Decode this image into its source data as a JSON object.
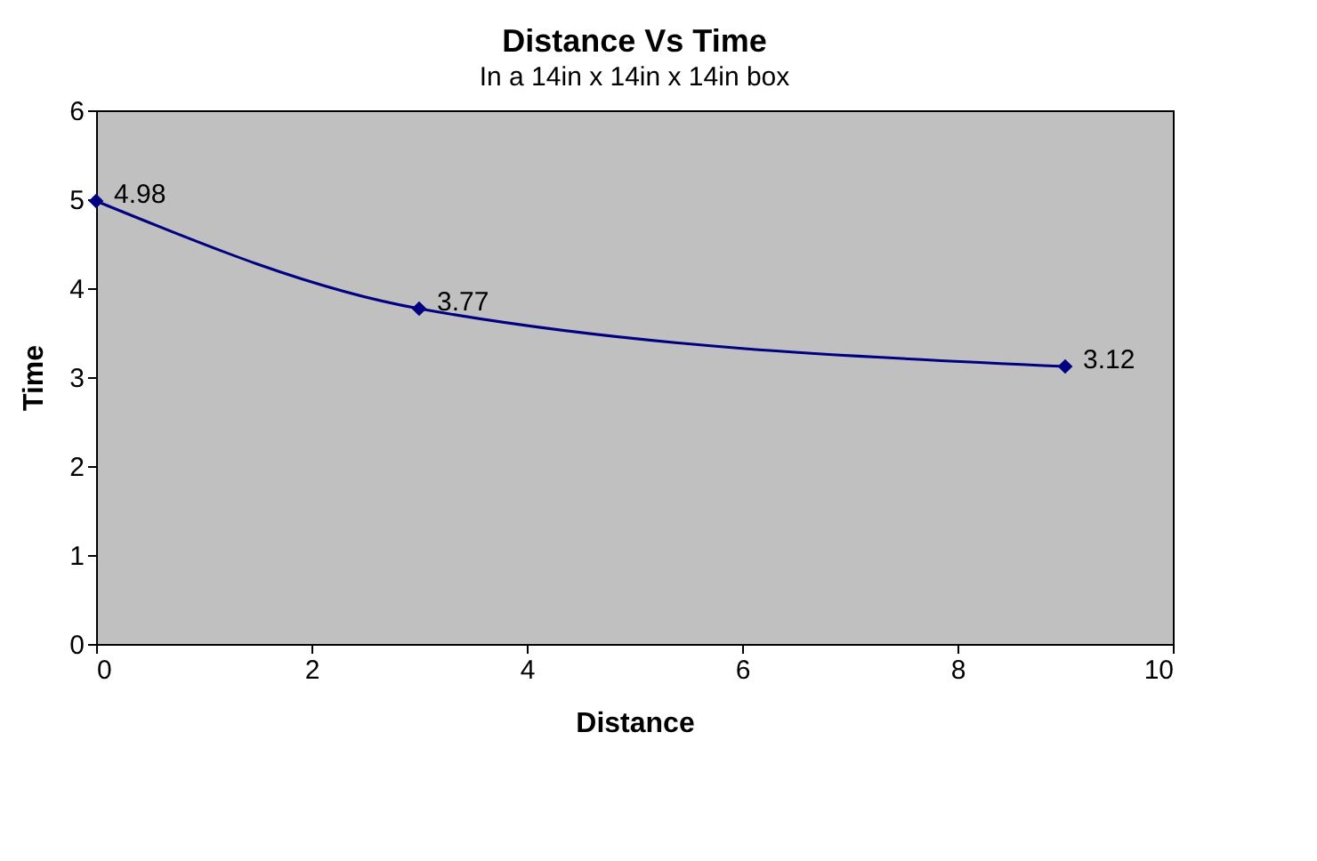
{
  "chart_data": {
    "type": "line",
    "title": "Distance Vs Time",
    "subtitle": "In a 14in x 14in x 14in box",
    "xlabel": "Distance",
    "ylabel": "Time",
    "x": [
      0,
      3,
      9
    ],
    "series": [
      {
        "color": "#000080",
        "values": [
          4.98,
          3.77,
          3.12
        ]
      }
    ],
    "xlim": [
      0,
      10
    ],
    "xticks": [
      0,
      2,
      4,
      6,
      8,
      10
    ],
    "ylim": [
      0,
      6
    ],
    "yticks": [
      0,
      1,
      2,
      3,
      4,
      5,
      6
    ],
    "grid": false,
    "marker": "diamond",
    "line_style": "solid",
    "data_labels": true
  }
}
